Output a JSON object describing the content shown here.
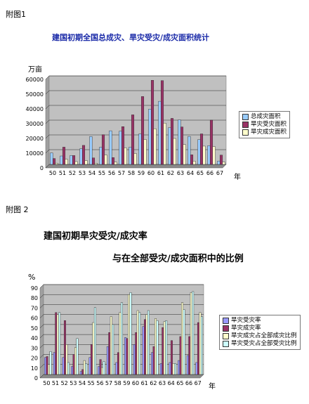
{
  "figure1": {
    "caption": "附图1",
    "title": "建国初期全国总成灾、旱灾受灾/成灾面积统计",
    "unit_label": "万亩",
    "year_label": "年"
  },
  "figure2": {
    "caption": "附图 2",
    "title_line1": "建国初期旱灾受灾/成灾率",
    "title_line2": "与在全部受灾/成灾面积中的比例",
    "unit_label": "%",
    "year_label": "年"
  },
  "colors": {
    "plot_bg": "#c0c0c0",
    "series1": [
      "#99ccff",
      "#993366",
      "#ffffcc"
    ],
    "series2": [
      "#9999ff",
      "#993366",
      "#ffffcc",
      "#ccffff"
    ]
  },
  "chart_data": [
    {
      "type": "bar",
      "title": "建国初期全国总成灾、旱灾受灾/成灾面积统计",
      "ylabel": "万亩",
      "xlabel": "年",
      "ylim": [
        0,
        60000
      ],
      "yticks": [
        0,
        10000,
        20000,
        30000,
        40000,
        50000,
        60000
      ],
      "grid": true,
      "legend_position": "right",
      "categories": [
        "50",
        "51",
        "52",
        "53",
        "54",
        "55",
        "56",
        "57",
        "58",
        "59",
        "60",
        "61",
        "62",
        "63",
        "64",
        "65",
        "66",
        "67"
      ],
      "series": [
        {
          "name": "总成灾面积",
          "values": [
            7800,
            5700,
            6000,
            10600,
            18900,
            11700,
            22800,
            22500,
            11700,
            20700,
            37500,
            42800,
            24900,
            30200,
            19000,
            16800,
            12700,
            2300
          ]
        },
        {
          "name": "旱灾受灾面积",
          "values": [
            4000,
            11700,
            6000,
            12900,
            4400,
            20100,
            4600,
            25600,
            33600,
            46000,
            57000,
            56800,
            31200,
            25400,
            6500,
            20700,
            30000,
            6300
          ]
        },
        {
          "name": "旱灾成灾面积",
          "values": [
            870,
            3500,
            1900,
            2600,
            840,
            6400,
            1600,
            11200,
            7400,
            16900,
            24200,
            28000,
            17600,
            13500,
            2200,
            12400,
            12100,
            1600
          ]
        }
      ]
    },
    {
      "type": "bar",
      "title": "建国初期旱灾受灾/成灾率与在全部受灾/成灾面积中的比例",
      "ylabel": "%",
      "xlabel": "年",
      "ylim": [
        0,
        90
      ],
      "yticks": [
        0,
        10,
        20,
        30,
        40,
        50,
        60,
        70,
        80,
        90
      ],
      "grid": true,
      "legend_position": "right",
      "categories": [
        "50",
        "51",
        "52",
        "53",
        "54",
        "55",
        "56",
        "57",
        "58",
        "59",
        "60",
        "61",
        "62",
        "63",
        "64",
        "65",
        "66",
        "67"
      ],
      "series": [
        {
          "name": "旱灾受灾率",
          "values": [
            17,
            22,
            17,
            8,
            3,
            17,
            8,
            28,
            12,
            37,
            30,
            48,
            22,
            11,
            12,
            14,
            19,
            12
          ]
        },
        {
          "name": "旱灾成灾率",
          "values": [
            18,
            62,
            54,
            20,
            5,
            30,
            15,
            42,
            22,
            36,
            42,
            55,
            28,
            47,
            34,
            38,
            38,
            52
          ]
        },
        {
          "name": "旱灾成灾占全部成灾比例",
          "values": [
            10,
            60,
            30,
            27,
            14,
            52,
            7,
            58,
            62,
            80,
            64,
            60,
            56,
            53,
            11,
            72,
            82,
            62
          ]
        },
        {
          "name": "旱灾受灾占全部受灾比例",
          "values": [
            23,
            62,
            12,
            36,
            11,
            67,
            13,
            50,
            72,
            82,
            62,
            64,
            54,
            54,
            11,
            65,
            83,
            58
          ]
        }
      ]
    }
  ]
}
